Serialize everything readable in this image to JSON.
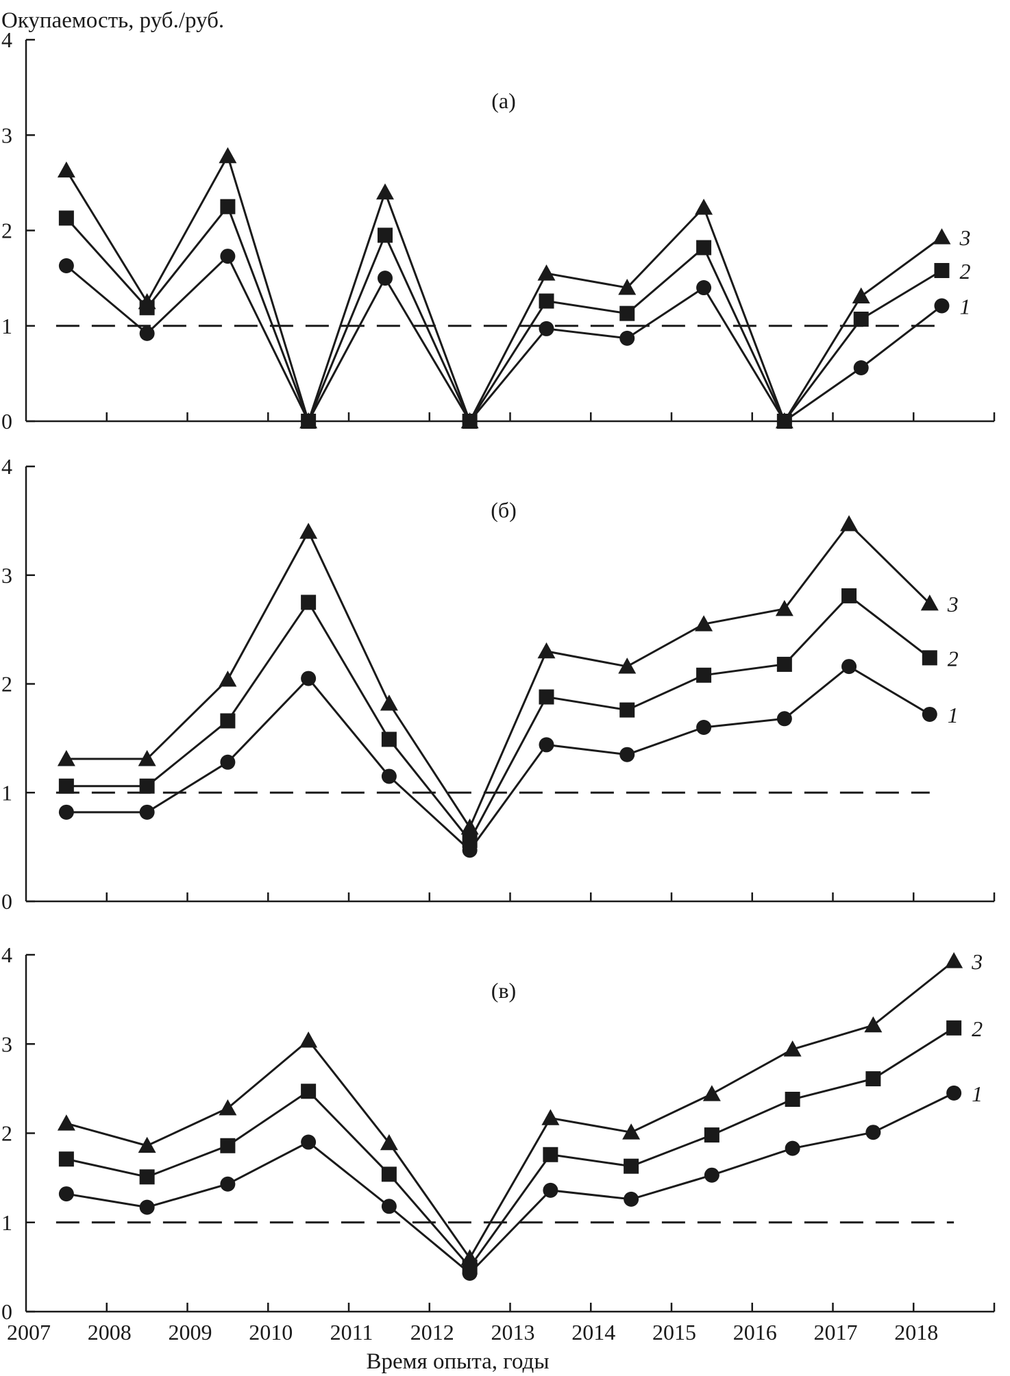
{
  "figure": {
    "ylabel": "Окупаемость, руб./руб.",
    "xlabel": "Время опыта, годы",
    "x_tick_labels": [
      "2007",
      "2008",
      "2009",
      "2010",
      "2011",
      "2012",
      "2013",
      "2014",
      "2015",
      "2016",
      "2017",
      "2018"
    ]
  },
  "colors": {
    "ink": "#1a1a1a",
    "background": "#ffffff"
  },
  "chart_data": [
    {
      "type": "line",
      "panel_label": "(а)",
      "ylim": [
        0,
        4
      ],
      "y_ticks": [
        0,
        1,
        2,
        3,
        4
      ],
      "x": [
        2007.5,
        2008.5,
        2009.5,
        2010.5,
        2011.45,
        2012.5,
        2013.45,
        2014.45,
        2015.4,
        2016.4,
        2017.35,
        2018.35
      ],
      "reference_line": {
        "y": 1,
        "style": "dashed"
      },
      "series": [
        {
          "name": "1",
          "marker": "circle",
          "values": [
            1.63,
            0.92,
            1.73,
            0,
            1.5,
            0,
            0.97,
            0.87,
            1.4,
            0,
            0.56,
            1.21
          ]
        },
        {
          "name": "2",
          "marker": "square",
          "values": [
            2.13,
            1.19,
            2.25,
            0,
            1.95,
            0,
            1.26,
            1.13,
            1.82,
            0,
            1.07,
            1.58
          ]
        },
        {
          "name": "3",
          "marker": "triangle",
          "values": [
            2.63,
            1.25,
            2.78,
            0,
            2.4,
            0,
            1.55,
            1.4,
            2.24,
            0,
            1.31,
            1.93
          ]
        }
      ]
    },
    {
      "type": "line",
      "panel_label": "(б)",
      "ylim": [
        0,
        4
      ],
      "y_ticks": [
        0,
        1,
        2,
        3,
        4
      ],
      "x": [
        2007.5,
        2008.5,
        2009.5,
        2010.5,
        2011.5,
        2012.5,
        2013.45,
        2014.45,
        2015.4,
        2016.4,
        2017.2,
        2018.2
      ],
      "reference_line": {
        "y": 1,
        "style": "dashed"
      },
      "series": [
        {
          "name": "1",
          "marker": "circle",
          "values": [
            0.82,
            0.82,
            1.28,
            2.05,
            1.15,
            0.47,
            1.44,
            1.35,
            1.6,
            1.68,
            2.16,
            1.72
          ]
        },
        {
          "name": "2",
          "marker": "square",
          "values": [
            1.06,
            1.06,
            1.66,
            2.75,
            1.49,
            0.56,
            1.88,
            1.76,
            2.08,
            2.18,
            2.81,
            2.24
          ]
        },
        {
          "name": "3",
          "marker": "triangle",
          "values": [
            1.31,
            1.31,
            2.04,
            3.4,
            1.82,
            0.68,
            2.3,
            2.16,
            2.55,
            2.69,
            3.47,
            2.74
          ]
        }
      ]
    },
    {
      "type": "line",
      "panel_label": "(в)",
      "ylim": [
        0,
        4
      ],
      "y_ticks": [
        0,
        1,
        2,
        3,
        4
      ],
      "x_ticks": [
        2007,
        2008,
        2009,
        2010,
        2011,
        2012,
        2013,
        2014,
        2015,
        2016,
        2017,
        2018
      ],
      "x": [
        2007.5,
        2008.5,
        2009.5,
        2010.5,
        2011.5,
        2012.5,
        2013.5,
        2014.5,
        2015.5,
        2016.5,
        2017.5,
        2018.5
      ],
      "reference_line": {
        "y": 1,
        "style": "dashed"
      },
      "series": [
        {
          "name": "1",
          "marker": "circle",
          "values": [
            1.32,
            1.17,
            1.43,
            1.9,
            1.18,
            0.43,
            1.36,
            1.26,
            1.53,
            1.83,
            2.01,
            2.45
          ]
        },
        {
          "name": "2",
          "marker": "square",
          "values": [
            1.71,
            1.51,
            1.86,
            2.47,
            1.54,
            0.5,
            1.76,
            1.63,
            1.98,
            2.38,
            2.61,
            3.18
          ]
        },
        {
          "name": "3",
          "marker": "triangle",
          "values": [
            2.11,
            1.86,
            2.28,
            3.04,
            1.89,
            0.6,
            2.17,
            2.01,
            2.44,
            2.94,
            3.21,
            3.93
          ]
        }
      ]
    }
  ]
}
